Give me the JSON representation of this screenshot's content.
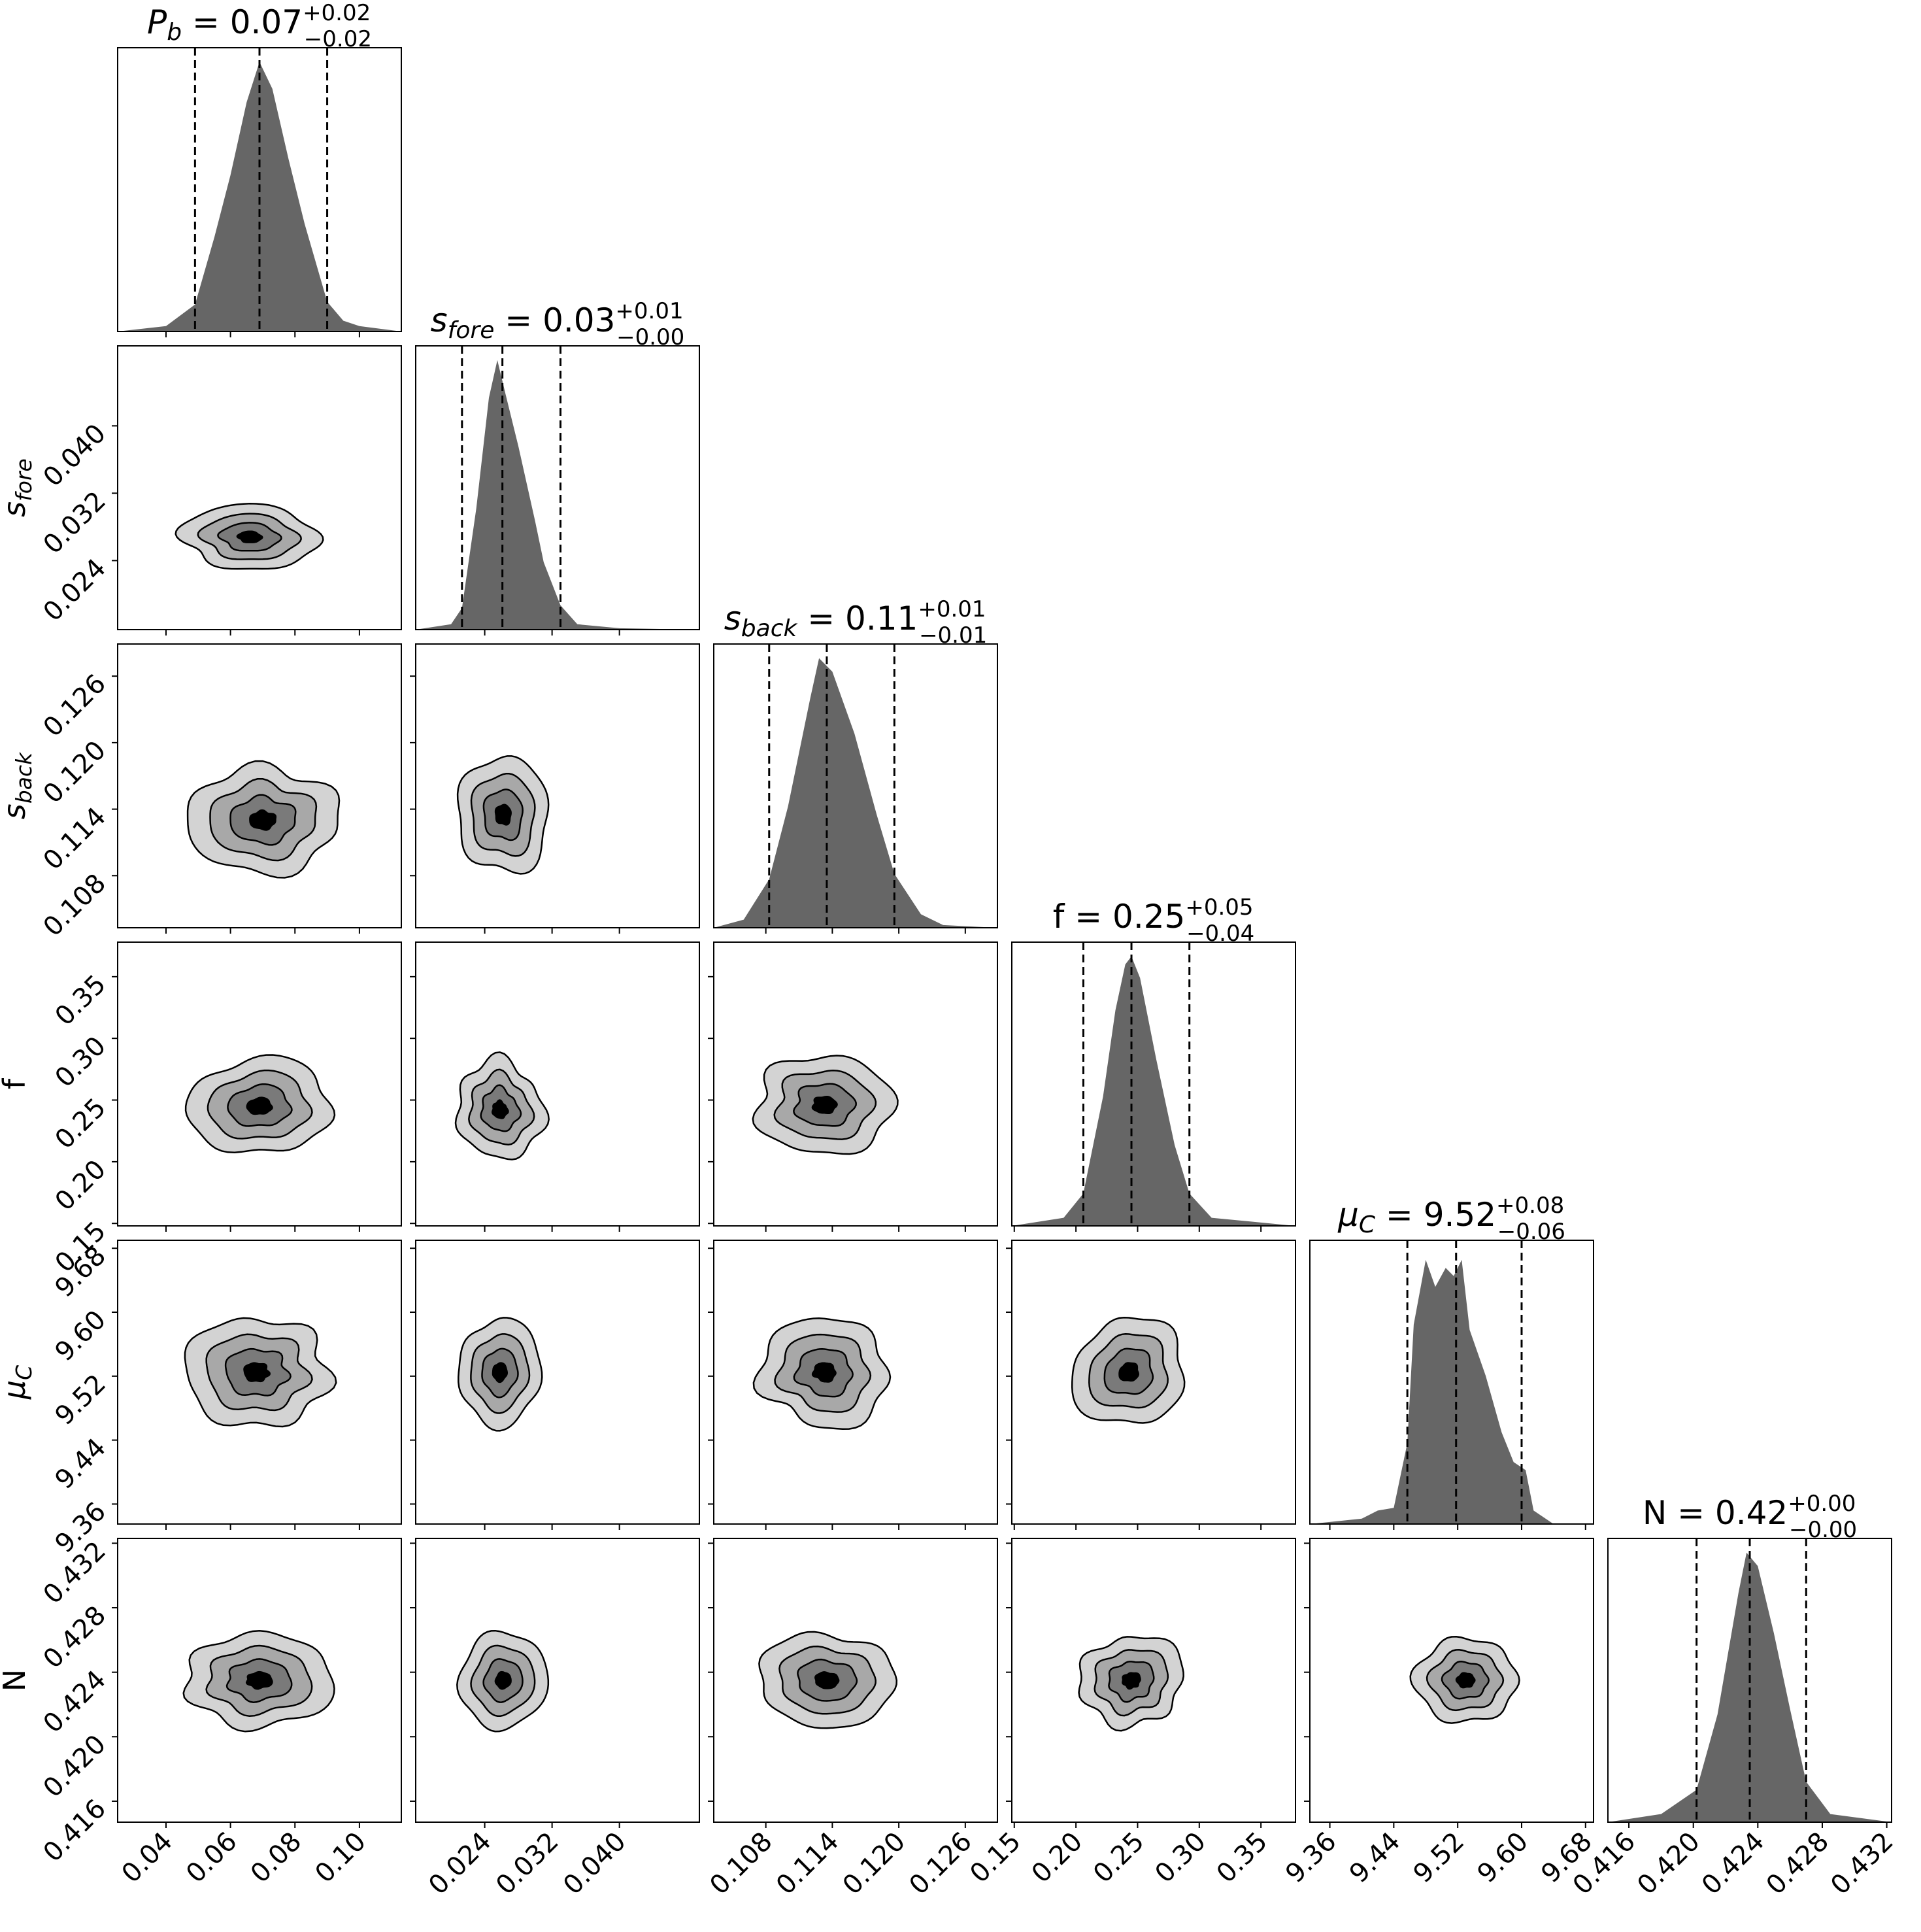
{
  "chart_data": {
    "type": "corner",
    "grid": false,
    "params": [
      {
        "key": "Pb",
        "label": "P_b",
        "title_name": "P_b",
        "value": "0.07",
        "plus": "+0.02",
        "minus": "−0.02",
        "range": [
          0.025,
          0.113
        ],
        "ticks": [
          "0.04",
          "0.06",
          "0.08",
          "0.10"
        ],
        "median": 0.069,
        "q16": 0.049,
        "q84": 0.09,
        "hist": [
          [
            0.025,
            0
          ],
          [
            0.04,
            0.02
          ],
          [
            0.049,
            0.1
          ],
          [
            0.055,
            0.35
          ],
          [
            0.06,
            0.58
          ],
          [
            0.065,
            0.85
          ],
          [
            0.069,
            1.0
          ],
          [
            0.073,
            0.9
          ],
          [
            0.078,
            0.64
          ],
          [
            0.083,
            0.4
          ],
          [
            0.09,
            0.11
          ],
          [
            0.095,
            0.04
          ],
          [
            0.1,
            0.02
          ],
          [
            0.113,
            0
          ]
        ]
      },
      {
        "key": "sfore",
        "label": "s_fore",
        "title_name": "s_fore",
        "value": "0.03",
        "plus": "+0.01",
        "minus": "−0.00",
        "range": [
          0.0158,
          0.0495
        ],
        "ticks": [
          "0.024",
          "0.032",
          "0.040"
        ],
        "median": 0.0261,
        "q16": 0.0213,
        "q84": 0.033,
        "hist": [
          [
            0.0158,
            0
          ],
          [
            0.02,
            0.02
          ],
          [
            0.0213,
            0.08
          ],
          [
            0.023,
            0.45
          ],
          [
            0.0245,
            0.86
          ],
          [
            0.0255,
            1.0
          ],
          [
            0.0265,
            0.87
          ],
          [
            0.028,
            0.68
          ],
          [
            0.03,
            0.4
          ],
          [
            0.031,
            0.25
          ],
          [
            0.033,
            0.09
          ],
          [
            0.035,
            0.02
          ],
          [
            0.04,
            0.005
          ],
          [
            0.0495,
            0
          ]
        ]
      },
      {
        "key": "sback",
        "label": "s_back",
        "title_name": "s_back",
        "value": "0.11",
        "plus": "+0.01",
        "minus": "−0.01",
        "range": [
          0.1033,
          0.1289
        ],
        "ticks": [
          "0.108",
          "0.114",
          "0.120",
          "0.126"
        ],
        "median": 0.1135,
        "q16": 0.1083,
        "q84": 0.1196,
        "hist": [
          [
            0.1033,
            0
          ],
          [
            0.106,
            0.03
          ],
          [
            0.1083,
            0.18
          ],
          [
            0.11,
            0.45
          ],
          [
            0.112,
            0.85
          ],
          [
            0.1128,
            1.0
          ],
          [
            0.114,
            0.95
          ],
          [
            0.116,
            0.72
          ],
          [
            0.118,
            0.42
          ],
          [
            0.1196,
            0.2
          ],
          [
            0.122,
            0.05
          ],
          [
            0.124,
            0.01
          ],
          [
            0.1289,
            0
          ]
        ]
      },
      {
        "key": "f",
        "label": "f",
        "title_name": "f",
        "value": "0.25",
        "plus": "+0.05",
        "minus": "−0.04",
        "range": [
          0.148,
          0.378
        ],
        "ticks": [
          "0.15",
          "0.20",
          "0.25",
          "0.30",
          "0.35"
        ],
        "median": 0.245,
        "q16": 0.206,
        "q84": 0.292,
        "hist": [
          [
            0.148,
            0
          ],
          [
            0.19,
            0.03
          ],
          [
            0.206,
            0.12
          ],
          [
            0.222,
            0.48
          ],
          [
            0.232,
            0.8
          ],
          [
            0.24,
            0.97
          ],
          [
            0.245,
            1.0
          ],
          [
            0.252,
            0.92
          ],
          [
            0.265,
            0.62
          ],
          [
            0.28,
            0.3
          ],
          [
            0.292,
            0.12
          ],
          [
            0.31,
            0.03
          ],
          [
            0.378,
            0
          ]
        ]
      },
      {
        "key": "muC",
        "label": "μ_C",
        "title_name": "μ_C",
        "value": "9.52",
        "plus": "+0.08",
        "minus": "−0.06",
        "range": [
          9.335,
          9.69
        ],
        "ticks": [
          "9.36",
          "9.44",
          "9.52",
          "9.60",
          "9.68"
        ],
        "median": 9.518,
        "q16": 9.457,
        "q84": 9.6,
        "hist": [
          [
            9.335,
            0
          ],
          [
            9.4,
            0.02
          ],
          [
            9.42,
            0.05
          ],
          [
            9.44,
            0.06
          ],
          [
            9.457,
            0.3
          ],
          [
            9.465,
            0.74
          ],
          [
            9.48,
            0.98
          ],
          [
            9.492,
            0.88
          ],
          [
            9.505,
            0.95
          ],
          [
            9.515,
            0.92
          ],
          [
            9.525,
            0.98
          ],
          [
            9.535,
            0.72
          ],
          [
            9.555,
            0.55
          ],
          [
            9.575,
            0.34
          ],
          [
            9.59,
            0.23
          ],
          [
            9.605,
            0.2
          ],
          [
            9.615,
            0.05
          ],
          [
            9.64,
            0
          ],
          [
            9.69,
            0
          ]
        ]
      },
      {
        "key": "N",
        "label": "N",
        "title_name": "N",
        "value": "0.42",
        "plus": "+0.00",
        "minus": "−0.00",
        "range": [
          0.4147,
          0.4323
        ],
        "ticks": [
          "0.416",
          "0.420",
          "0.424",
          "0.428",
          "0.432"
        ],
        "median": 0.4235,
        "q16": 0.4202,
        "q84": 0.427,
        "hist": [
          [
            0.4147,
            0
          ],
          [
            0.418,
            0.03
          ],
          [
            0.4202,
            0.12
          ],
          [
            0.4215,
            0.4
          ],
          [
            0.4228,
            0.85
          ],
          [
            0.4233,
            1.0
          ],
          [
            0.424,
            0.95
          ],
          [
            0.425,
            0.7
          ],
          [
            0.426,
            0.42
          ],
          [
            0.427,
            0.15
          ],
          [
            0.4285,
            0.03
          ],
          [
            0.4323,
            0
          ]
        ]
      }
    ],
    "ylabel_ticks": {
      "sfore": [
        "0.024",
        "0.032",
        "0.040"
      ],
      "sback": [
        "0.108",
        "0.114",
        "0.120",
        "0.126"
      ],
      "f": [
        "0.15",
        "0.20",
        "0.25",
        "0.30",
        "0.35"
      ],
      "muC": [
        "9.36",
        "9.44",
        "9.52",
        "9.60",
        "9.68"
      ],
      "N": [
        "0.416",
        "0.420",
        "0.424",
        "0.428",
        "0.432"
      ]
    },
    "contour_levels": [
      "#d3d3d3",
      "#a8a8a8",
      "#7a7a7a",
      "#000000"
    ],
    "contour_scale": [
      1.0,
      0.7,
      0.43,
      0.17
    ],
    "pairs": [
      {
        "row": 1,
        "col": 0,
        "cx": 0.066,
        "cy": 0.0268,
        "sx": 0.0215,
        "sy": 0.00375
      },
      {
        "row": 2,
        "col": 0,
        "cx": 0.07,
        "cy": 0.113,
        "sx": 0.0235,
        "sy": 0.0048
      },
      {
        "row": 2,
        "col": 1,
        "cx": 0.0262,
        "cy": 0.1135,
        "sx": 0.0055,
        "sy": 0.0052
      },
      {
        "row": 3,
        "col": 0,
        "cx": 0.069,
        "cy": 0.245,
        "sx": 0.022,
        "sy": 0.039
      },
      {
        "row": 3,
        "col": 1,
        "cx": 0.0258,
        "cy": 0.242,
        "sx": 0.0052,
        "sy": 0.039
      },
      {
        "row": 3,
        "col": 2,
        "cx": 0.1133,
        "cy": 0.246,
        "sx": 0.0062,
        "sy": 0.04
      },
      {
        "row": 4,
        "col": 0,
        "cx": 0.068,
        "cy": 9.525,
        "sx": 0.0225,
        "sy": 0.068
      },
      {
        "row": 4,
        "col": 1,
        "cx": 0.0258,
        "cy": 9.525,
        "sx": 0.0048,
        "sy": 0.068
      },
      {
        "row": 4,
        "col": 2,
        "cx": 0.1133,
        "cy": 9.525,
        "sx": 0.0058,
        "sy": 0.068
      },
      {
        "row": 4,
        "col": 3,
        "cx": 0.243,
        "cy": 9.525,
        "sx": 0.045,
        "sy": 0.068
      },
      {
        "row": 5,
        "col": 0,
        "cx": 0.069,
        "cy": 0.4235,
        "sx": 0.023,
        "sy": 0.0029
      },
      {
        "row": 5,
        "col": 1,
        "cx": 0.0262,
        "cy": 0.4235,
        "sx": 0.0052,
        "sy": 0.003
      },
      {
        "row": 5,
        "col": 2,
        "cx": 0.1135,
        "cy": 0.4235,
        "sx": 0.0062,
        "sy": 0.0029
      },
      {
        "row": 5,
        "col": 3,
        "cx": 0.245,
        "cy": 0.4235,
        "sx": 0.042,
        "sy": 0.0028
      },
      {
        "row": 5,
        "col": 4,
        "cx": 9.53,
        "cy": 0.4235,
        "sx": 0.064,
        "sy": 0.0026
      }
    ]
  }
}
